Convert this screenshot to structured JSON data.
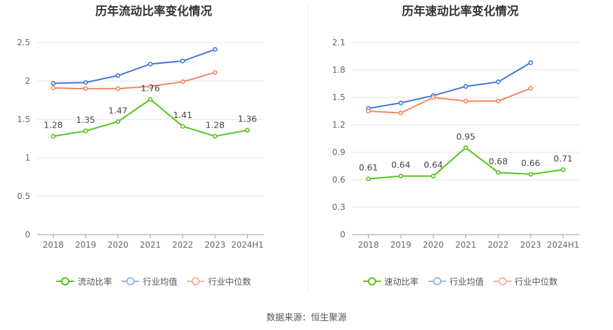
{
  "chart_data": [
    {
      "type": "line",
      "title": "历年流动比率变化情况",
      "categories": [
        "2018",
        "2019",
        "2020",
        "2021",
        "2022",
        "2023",
        "2024H1"
      ],
      "ylim": [
        0,
        2.5
      ],
      "yticks": [
        "0",
        "0.5",
        "1",
        "1.5",
        "2",
        "2.5"
      ],
      "grid": true,
      "legend_position": "bottom",
      "series": [
        {
          "name": "流动比率",
          "color": "#52c41a",
          "values": [
            1.28,
            1.35,
            1.47,
            1.76,
            1.41,
            1.28,
            1.36
          ],
          "labels": [
            "1.28",
            "1.35",
            "1.47",
            "1.76",
            "1.41",
            "1.28",
            "1.36"
          ]
        },
        {
          "name": "行业均值",
          "color": "#3d74db",
          "values": [
            1.97,
            1.98,
            2.07,
            2.22,
            2.26,
            2.41,
            null
          ]
        },
        {
          "name": "行业中位数",
          "color": "#f4845f",
          "values": [
            1.91,
            1.9,
            1.9,
            1.93,
            1.99,
            2.11,
            null
          ]
        }
      ]
    },
    {
      "type": "line",
      "title": "历年速动比率变化情况",
      "categories": [
        "2018",
        "2019",
        "2020",
        "2021",
        "2022",
        "2023",
        "2024H1"
      ],
      "ylim": [
        0,
        2.1
      ],
      "yticks": [
        "0",
        "0.3",
        "0.6",
        "0.9",
        "1.2",
        "1.5",
        "1.8",
        "2.1"
      ],
      "grid": true,
      "legend_position": "bottom",
      "series": [
        {
          "name": "速动比率",
          "color": "#52c41a",
          "values": [
            0.61,
            0.64,
            0.64,
            0.95,
            0.68,
            0.66,
            0.71
          ],
          "labels": [
            "0.61",
            "0.64",
            "0.64",
            "0.95",
            "0.68",
            "0.66",
            "0.71"
          ]
        },
        {
          "name": "行业均值",
          "color": "#3d74db",
          "values": [
            1.38,
            1.44,
            1.52,
            1.62,
            1.67,
            1.88,
            null
          ]
        },
        {
          "name": "行业中位数",
          "color": "#f4845f",
          "values": [
            1.35,
            1.33,
            1.5,
            1.46,
            1.46,
            1.6,
            null
          ]
        }
      ]
    }
  ],
  "footer": {
    "source": "数据来源：恒生聚源"
  }
}
